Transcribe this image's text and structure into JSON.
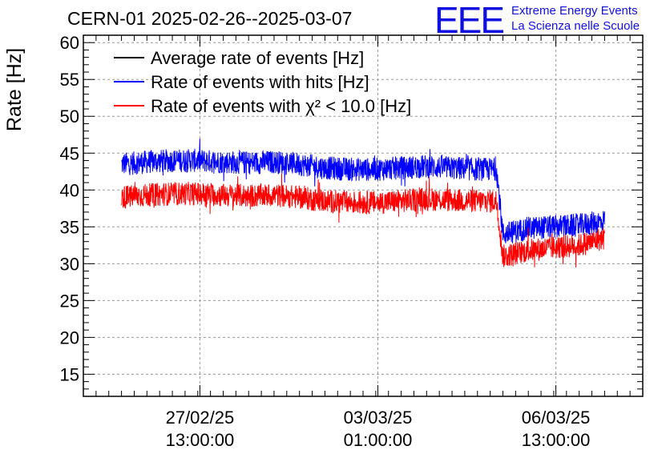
{
  "header": {
    "title": "CERN-01 2025-02-26--2025-03-07",
    "logo_text": "EEE",
    "org_line1": "Extreme Energy Events",
    "org_line2": "La Scienza nelle Scuole"
  },
  "chart_data": {
    "type": "line",
    "title": "CERN-01 2025-02-26--2025-03-07",
    "xlabel": "",
    "ylabel": "Rate [Hz]",
    "ylim": [
      12,
      61
    ],
    "xlim": [
      "2025-02-25T06:00:00",
      "2025-03-08T06:00:00"
    ],
    "grid": true,
    "legend_position": "top-left",
    "yticks": [
      15,
      20,
      25,
      30,
      35,
      40,
      45,
      50,
      55,
      60
    ],
    "xticks": [
      {
        "t": "2025-02-27T13:00:00",
        "line1": "27/02/25",
        "line2": "13:00:00"
      },
      {
        "t": "2025-03-03T01:00:00",
        "line1": "03/03/25",
        "line2": "01:00:00"
      },
      {
        "t": "2025-03-06T13:00:00",
        "line1": "06/03/25",
        "line2": "13:00:00"
      }
    ],
    "series": [
      {
        "name": "Average rate of events [Hz]",
        "color": "#000000",
        "x": [],
        "y": []
      },
      {
        "name": "Rate of events with hits [Hz]",
        "color": "#0000ff",
        "x": [
          "2025-02-26T00:00:00",
          "2025-02-26T12:00:00",
          "2025-02-27T00:00:00",
          "2025-02-27T12:00:00",
          "2025-02-28T00:00:00",
          "2025-02-28T12:00:00",
          "2025-03-01T00:00:00",
          "2025-03-01T12:00:00",
          "2025-03-02T00:00:00",
          "2025-03-02T12:00:00",
          "2025-03-03T00:00:00",
          "2025-03-03T12:00:00",
          "2025-03-04T00:00:00",
          "2025-03-04T12:00:00",
          "2025-03-05T00:00:00",
          "2025-03-05T09:00:00",
          "2025-03-05T12:00:00",
          "2025-03-06T00:00:00",
          "2025-03-06T12:00:00",
          "2025-03-07T00:00:00",
          "2025-03-07T12:00:00"
        ],
        "y": [
          43.5,
          43.8,
          44.0,
          44.0,
          43.8,
          43.7,
          43.8,
          43.5,
          43.0,
          42.8,
          42.8,
          43.0,
          43.2,
          43.0,
          42.8,
          42.8,
          34.0,
          34.8,
          35.0,
          35.2,
          35.8
        ]
      },
      {
        "name": "Rate of events with χ² < 10.0 [Hz]",
        "color": "#ff0000",
        "x": [
          "2025-02-26T00:00:00",
          "2025-02-26T12:00:00",
          "2025-02-27T00:00:00",
          "2025-02-27T12:00:00",
          "2025-02-28T00:00:00",
          "2025-02-28T12:00:00",
          "2025-03-01T00:00:00",
          "2025-03-01T12:00:00",
          "2025-03-02T00:00:00",
          "2025-03-02T12:00:00",
          "2025-03-03T00:00:00",
          "2025-03-03T12:00:00",
          "2025-03-04T00:00:00",
          "2025-03-04T12:00:00",
          "2025-03-05T00:00:00",
          "2025-03-05T09:00:00",
          "2025-03-05T12:00:00",
          "2025-03-06T00:00:00",
          "2025-03-06T12:00:00",
          "2025-03-07T00:00:00",
          "2025-03-07T12:00:00"
        ],
        "y": [
          39.0,
          39.3,
          39.5,
          39.5,
          39.3,
          39.2,
          39.3,
          39.0,
          38.5,
          38.3,
          38.3,
          38.5,
          38.8,
          38.6,
          38.5,
          38.5,
          31.0,
          31.8,
          32.2,
          32.5,
          33.5
        ]
      }
    ]
  }
}
